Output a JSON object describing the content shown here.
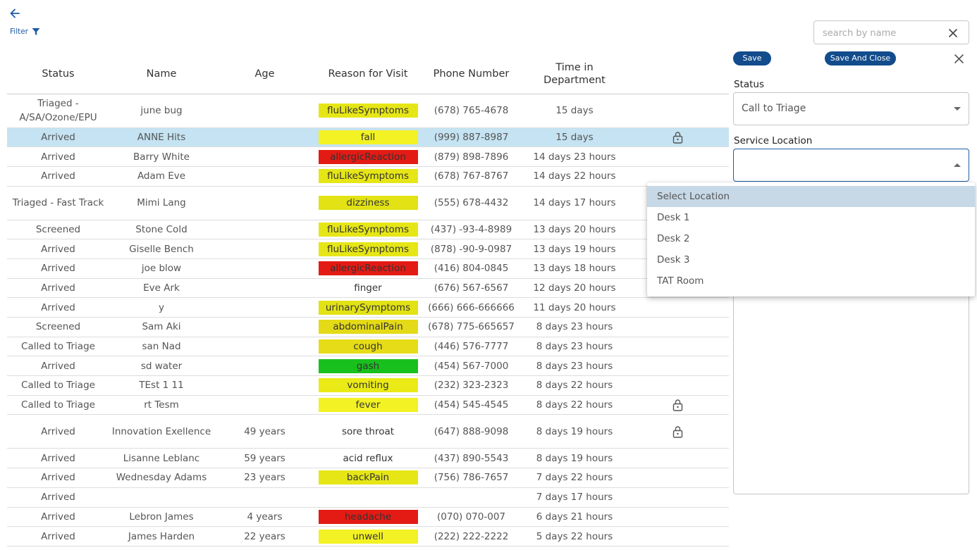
{
  "toolbar": {
    "filter_label": "Filter",
    "search_placeholder": "search by name"
  },
  "table": {
    "headers": [
      "Status",
      "Name",
      "Age",
      "Reason for Visit",
      "Phone Number",
      "Time in Department"
    ],
    "rows": [
      {
        "status": "Triaged - A/SA/Ozone/EPU",
        "name": "june bug",
        "age": "",
        "reason": "fluLikeSymptoms",
        "reason_color": "#e6e617",
        "phone": "(678) 765-4678",
        "time": "15 days",
        "locked": false,
        "tall": true
      },
      {
        "status": "Arrived",
        "name": "ANNE Hits",
        "age": "",
        "reason": "fall",
        "reason_color": "#f2f224",
        "phone": "(999) 887-8987",
        "time": "15 days",
        "locked": true,
        "selected": true
      },
      {
        "status": "Arrived",
        "name": "Barry White",
        "age": "",
        "reason": "allergicReaction",
        "reason_color": "#e31b14",
        "phone": "(879) 898-7896",
        "time": "14 days 23 hours",
        "locked": false
      },
      {
        "status": "Arrived",
        "name": "Adam Eve",
        "age": "",
        "reason": "fluLikeSymptoms",
        "reason_color": "#e6e617",
        "phone": "(678) 767-8767",
        "time": "14 days 22 hours",
        "locked": false
      },
      {
        "status": "Triaged - Fast Track",
        "name": "Mimi Lang",
        "age": "",
        "reason": "dizziness",
        "reason_color": "#e2e214",
        "phone": "(555) 678-4432",
        "time": "14 days 17 hours",
        "locked": false,
        "tall": true
      },
      {
        "status": "Screened",
        "name": "Stone Cold",
        "age": "",
        "reason": "fluLikeSymptoms",
        "reason_color": "#e6e617",
        "phone": "(437) -93-4-8989",
        "time": "13 days 20 hours",
        "locked": true
      },
      {
        "status": "Arrived",
        "name": "Giselle Bench",
        "age": "",
        "reason": "fluLikeSymptoms",
        "reason_color": "#e6e617",
        "phone": "(878) -90-9-0987",
        "time": "13 days 19 hours",
        "locked": false
      },
      {
        "status": "Arrived",
        "name": "joe blow",
        "age": "",
        "reason": "allergicReaction",
        "reason_color": "#e31b14",
        "phone": "(416) 804-0845",
        "time": "13 days 18 hours",
        "locked": false
      },
      {
        "status": "Arrived",
        "name": "Eve Ark",
        "age": "",
        "reason": "finger",
        "reason_color": "",
        "phone": "(676) 567-6567",
        "time": "12 days 20 hours",
        "locked": false
      },
      {
        "status": "Arrived",
        "name": "y",
        "age": "",
        "reason": "urinarySymptoms",
        "reason_color": "#e2e214",
        "phone": "(666) 666-666666",
        "time": "11 days 20 hours",
        "locked": false
      },
      {
        "status": "Screened",
        "name": "Sam Aki",
        "age": "",
        "reason": "abdominalPain",
        "reason_color": "#e4da17",
        "phone": "(678) 775-665657",
        "time": "8 days 23 hours",
        "locked": false
      },
      {
        "status": "Called to Triage",
        "name": "san Nad",
        "age": "",
        "reason": "cough",
        "reason_color": "#e6dc17",
        "phone": "(446) 576-7777",
        "time": "8 days 23 hours",
        "locked": false
      },
      {
        "status": "Arrived",
        "name": "sd water",
        "age": "",
        "reason": "gash",
        "reason_color": "#18c01d",
        "phone": "(454) 567-7000",
        "time": "8 days 23 hours",
        "locked": false
      },
      {
        "status": "Called to Triage",
        "name": "TEst 1 11",
        "age": "",
        "reason": "vomiting",
        "reason_color": "#eaea17",
        "phone": "(232) 323-2323",
        "time": "8 days 22 hours",
        "locked": false
      },
      {
        "status": "Called to Triage",
        "name": "rt Tesm",
        "age": "",
        "reason": "fever",
        "reason_color": "#f2f224",
        "phone": "(454) 545-4545",
        "time": "8 days 22 hours",
        "locked": true
      },
      {
        "status": "Arrived",
        "name": "Innovation Exellence",
        "age": "49 years",
        "reason": "sore throat",
        "reason_color": "",
        "phone": "(647) 888-9098",
        "time": "8 days 19 hours",
        "locked": true,
        "tall": true
      },
      {
        "status": "Arrived",
        "name": "Lisanne Leblanc",
        "age": "59 years",
        "reason": "acid reflux",
        "reason_color": "",
        "phone": "(437) 890-5543",
        "time": "8 days 19 hours",
        "locked": false
      },
      {
        "status": "Arrived",
        "name": "Wednesday Adams",
        "age": "23 years",
        "reason": "backPain",
        "reason_color": "#e6e617",
        "phone": "(756) 786-7657",
        "time": "7 days 22 hours",
        "locked": false
      },
      {
        "status": "Arrived",
        "name": "",
        "age": "",
        "reason": "",
        "reason_color": "",
        "phone": "",
        "time": "7 days 17 hours",
        "locked": false
      },
      {
        "status": "Arrived",
        "name": "Lebron James",
        "age": "4 years",
        "reason": "headache",
        "reason_color": "#e31b14",
        "phone": "(070) 070-007",
        "time": "6 days 21 hours",
        "locked": false
      },
      {
        "status": "Arrived",
        "name": "James Harden",
        "age": "22 years",
        "reason": "unwell",
        "reason_color": "#f2f224",
        "phone": "(222) 222-2222",
        "time": "5 days 22 hours",
        "locked": false
      }
    ]
  },
  "panel": {
    "save_label": "Save",
    "save_close_label": "Save And Close",
    "status_label": "Status",
    "status_value": "Call to Triage",
    "service_location_label": "Service Location",
    "service_location_value": "",
    "location_options": [
      "Select Location",
      "Desk 1",
      "Desk 2",
      "Desk 3",
      "TAT Room"
    ]
  },
  "colors": {
    "accent": "#124c8c",
    "selected_row": "#c5e3f2"
  }
}
